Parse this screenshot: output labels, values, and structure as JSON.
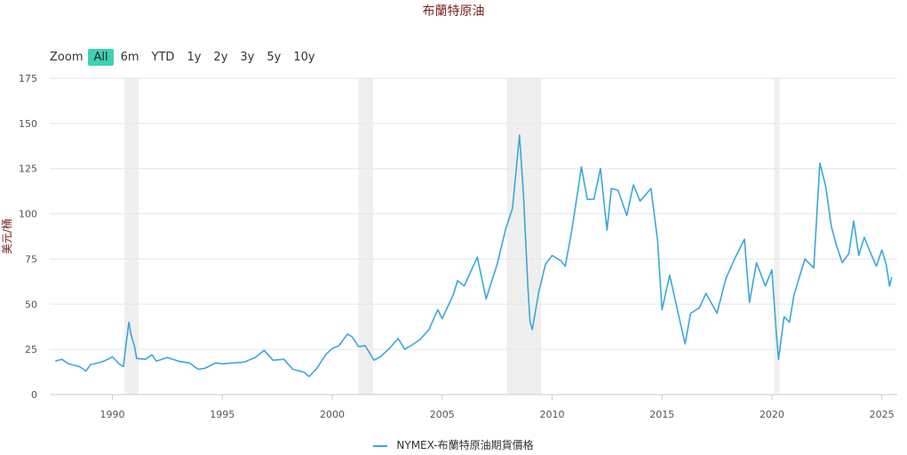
{
  "chart_data": {
    "type": "line",
    "title": "布蘭特原油",
    "ylabel": "美元/桶",
    "ylim": [
      0,
      175
    ],
    "yticks": [
      0,
      25,
      50,
      75,
      100,
      125,
      150,
      175
    ],
    "xlim": [
      1987.15,
      2025.7
    ],
    "xticks": [
      1990,
      1995,
      2000,
      2005,
      2010,
      2015,
      2020,
      2025
    ],
    "grid": true,
    "legend_position": "bottom-center",
    "series_color": "#3aa8d8",
    "shaded_periods": [
      [
        1990.55,
        1991.2
      ],
      [
        2001.2,
        2001.85
      ],
      [
        2007.95,
        2009.5
      ],
      [
        2020.1,
        2020.35
      ]
    ],
    "series": [
      {
        "name": "NYMEX-布蘭特原油期貨價格",
        "points": [
          [
            1987.4,
            18.5
          ],
          [
            1987.7,
            19.5
          ],
          [
            1988.0,
            17.0
          ],
          [
            1988.5,
            15.5
          ],
          [
            1988.8,
            13.0
          ],
          [
            1989.0,
            16.5
          ],
          [
            1989.5,
            18.0
          ],
          [
            1989.8,
            19.5
          ],
          [
            1990.0,
            21.0
          ],
          [
            1990.3,
            17.0
          ],
          [
            1990.5,
            15.5
          ],
          [
            1990.6,
            26.0
          ],
          [
            1990.75,
            40.0
          ],
          [
            1990.85,
            33.0
          ],
          [
            1991.0,
            27.0
          ],
          [
            1991.1,
            20.0
          ],
          [
            1991.5,
            19.5
          ],
          [
            1991.8,
            22.0
          ],
          [
            1992.0,
            18.5
          ],
          [
            1992.5,
            20.5
          ],
          [
            1993.0,
            18.5
          ],
          [
            1993.5,
            17.5
          ],
          [
            1993.9,
            14.0
          ],
          [
            1994.2,
            14.5
          ],
          [
            1994.7,
            17.5
          ],
          [
            1995.0,
            17.0
          ],
          [
            1995.5,
            17.5
          ],
          [
            1996.0,
            18.0
          ],
          [
            1996.5,
            20.5
          ],
          [
            1996.9,
            24.5
          ],
          [
            1997.3,
            19.0
          ],
          [
            1997.8,
            19.5
          ],
          [
            1998.2,
            14.0
          ],
          [
            1998.7,
            12.5
          ],
          [
            1998.95,
            10.0
          ],
          [
            1999.3,
            14.5
          ],
          [
            1999.7,
            22.0
          ],
          [
            2000.0,
            25.5
          ],
          [
            2000.3,
            27.0
          ],
          [
            2000.7,
            33.5
          ],
          [
            2000.9,
            32.0
          ],
          [
            2001.2,
            26.5
          ],
          [
            2001.5,
            27.0
          ],
          [
            2001.9,
            19.0
          ],
          [
            2002.2,
            21.0
          ],
          [
            2002.6,
            25.5
          ],
          [
            2003.0,
            31.0
          ],
          [
            2003.3,
            25.0
          ],
          [
            2003.7,
            28.0
          ],
          [
            2004.0,
            30.5
          ],
          [
            2004.4,
            36.0
          ],
          [
            2004.8,
            47.0
          ],
          [
            2005.0,
            42.0
          ],
          [
            2005.5,
            55.0
          ],
          [
            2005.7,
            63.0
          ],
          [
            2006.0,
            60.0
          ],
          [
            2006.6,
            76.0
          ],
          [
            2007.0,
            53.0
          ],
          [
            2007.5,
            72.0
          ],
          [
            2007.9,
            92.0
          ],
          [
            2008.2,
            103.0
          ],
          [
            2008.52,
            143.5
          ],
          [
            2008.7,
            110.0
          ],
          [
            2008.9,
            60.0
          ],
          [
            2009.0,
            40.0
          ],
          [
            2009.1,
            36.0
          ],
          [
            2009.4,
            57.0
          ],
          [
            2009.7,
            72.0
          ],
          [
            2010.0,
            77.0
          ],
          [
            2010.4,
            74.0
          ],
          [
            2010.6,
            71.0
          ],
          [
            2010.9,
            91.0
          ],
          [
            2011.2,
            115.0
          ],
          [
            2011.33,
            126.0
          ],
          [
            2011.6,
            108.0
          ],
          [
            2011.9,
            108.0
          ],
          [
            2012.2,
            125.0
          ],
          [
            2012.5,
            91.0
          ],
          [
            2012.7,
            114.0
          ],
          [
            2013.0,
            113.0
          ],
          [
            2013.4,
            99.0
          ],
          [
            2013.7,
            116.0
          ],
          [
            2014.0,
            107.0
          ],
          [
            2014.5,
            114.0
          ],
          [
            2014.8,
            85.0
          ],
          [
            2015.0,
            47.0
          ],
          [
            2015.35,
            66.0
          ],
          [
            2015.7,
            47.0
          ],
          [
            2016.05,
            28.0
          ],
          [
            2016.3,
            45.0
          ],
          [
            2016.7,
            48.0
          ],
          [
            2017.0,
            56.0
          ],
          [
            2017.5,
            45.0
          ],
          [
            2017.9,
            64.0
          ],
          [
            2018.3,
            75.0
          ],
          [
            2018.75,
            86.0
          ],
          [
            2018.98,
            51.0
          ],
          [
            2019.3,
            73.0
          ],
          [
            2019.7,
            60.0
          ],
          [
            2020.0,
            69.0
          ],
          [
            2020.2,
            34.0
          ],
          [
            2020.3,
            19.5
          ],
          [
            2020.55,
            43.0
          ],
          [
            2020.8,
            40.0
          ],
          [
            2021.0,
            55.0
          ],
          [
            2021.5,
            75.0
          ],
          [
            2021.9,
            70.0
          ],
          [
            2022.18,
            128.0
          ],
          [
            2022.45,
            115.0
          ],
          [
            2022.7,
            93.0
          ],
          [
            2022.95,
            82.0
          ],
          [
            2023.2,
            73.0
          ],
          [
            2023.5,
            78.0
          ],
          [
            2023.72,
            96.0
          ],
          [
            2023.95,
            77.0
          ],
          [
            2024.2,
            87.0
          ],
          [
            2024.5,
            78.0
          ],
          [
            2024.75,
            71.0
          ],
          [
            2025.0,
            80.0
          ],
          [
            2025.2,
            72.0
          ],
          [
            2025.35,
            60.0
          ],
          [
            2025.45,
            65.0
          ]
        ]
      }
    ]
  },
  "zoom": {
    "label": "Zoom",
    "buttons": [
      "All",
      "6m",
      "YTD",
      "1y",
      "2y",
      "3y",
      "5y",
      "10y"
    ],
    "active": "All"
  }
}
